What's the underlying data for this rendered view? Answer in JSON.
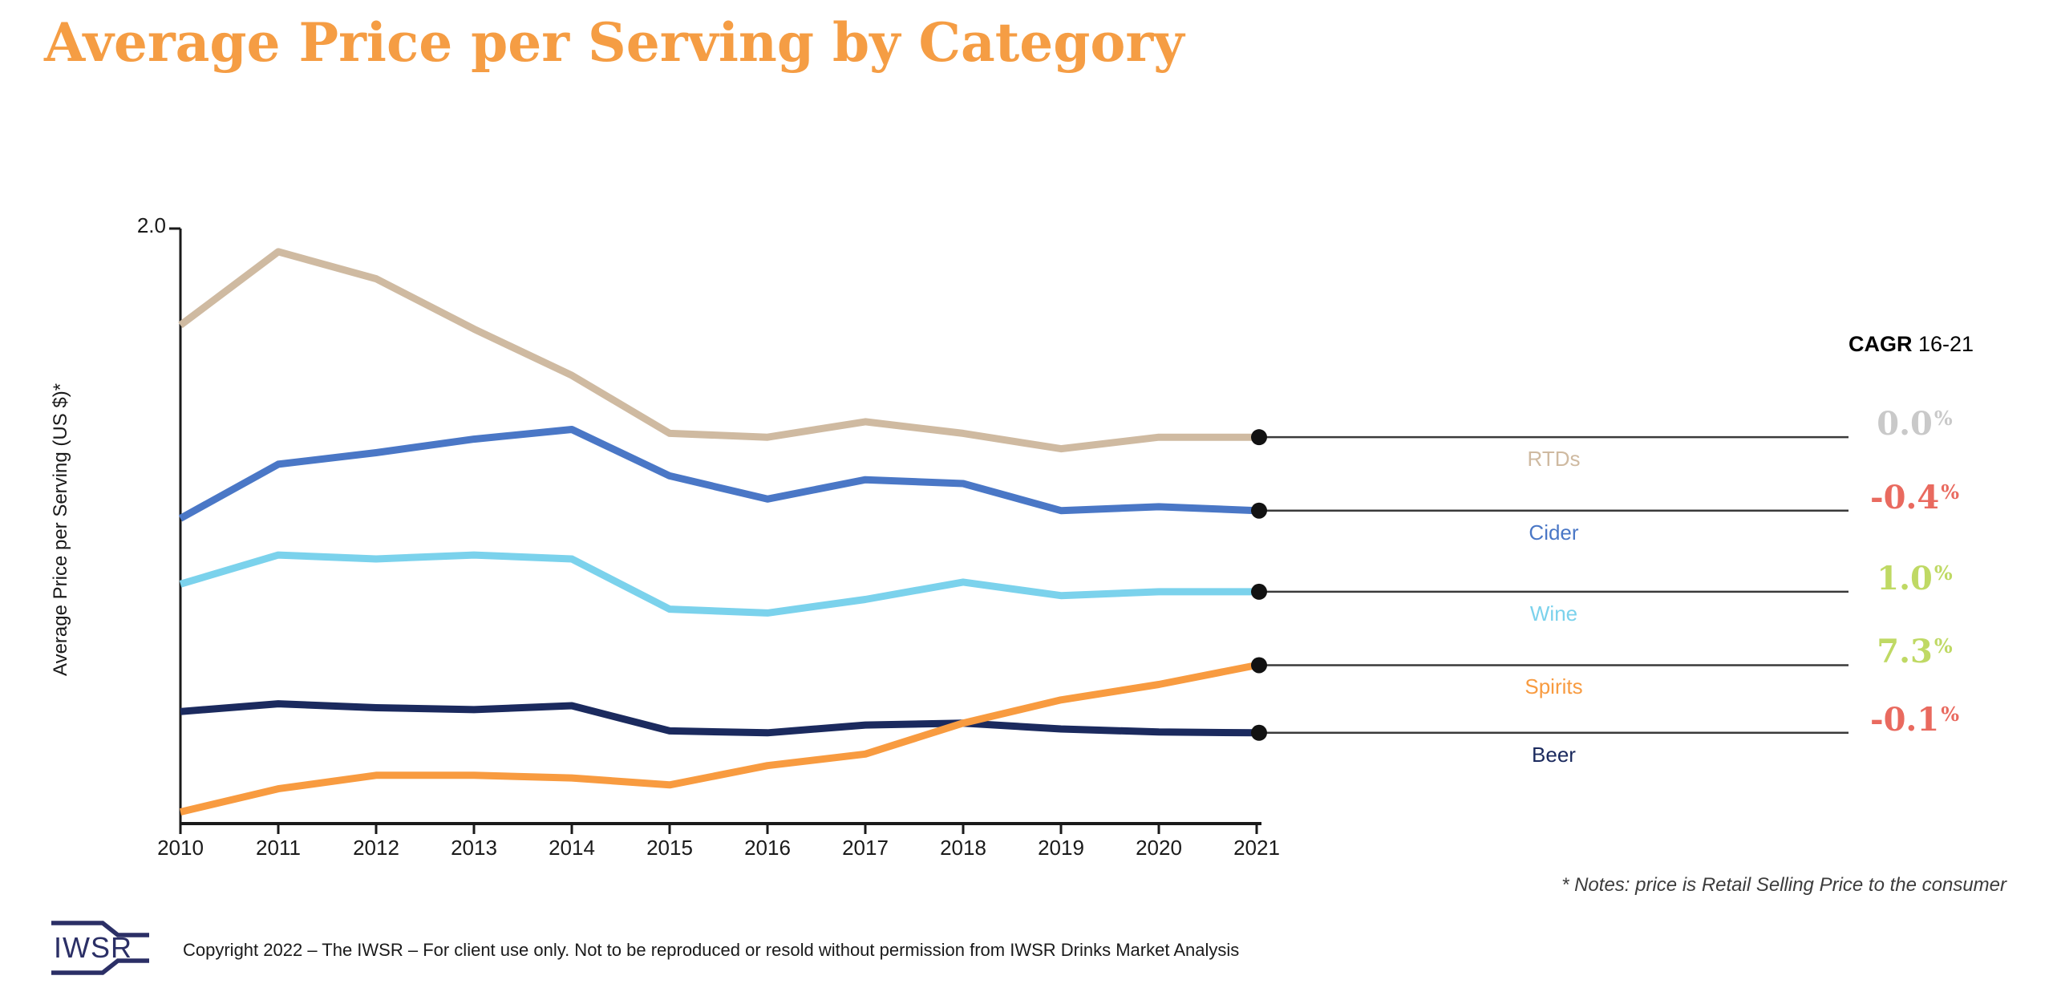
{
  "page": {
    "title": "Average Price per Serving by Category",
    "title_color": "#F59D44"
  },
  "chart_data": {
    "type": "line",
    "title": "Average Price per Serving by Category",
    "ylabel": "Average Price per Serving (US $)*",
    "y_axis_top_label": "2.0",
    "ylim": [
      0.46,
      2.0
    ],
    "grid": false,
    "legend_position": "right",
    "x": [
      2010,
      2011,
      2012,
      2013,
      2014,
      2015,
      2016,
      2017,
      2018,
      2019,
      2020,
      2021
    ],
    "series": [
      {
        "name": "RTDs",
        "color": "#CFBAA1",
        "cagr_label": "0.0",
        "cagr_color": "#C9C9C9",
        "values": [
          1.75,
          1.94,
          1.87,
          1.74,
          1.62,
          1.47,
          1.46,
          1.5,
          1.47,
          1.43,
          1.46,
          1.46
        ]
      },
      {
        "name": "Cider",
        "color": "#4A77C6",
        "cagr_label": "-0.4",
        "cagr_color": "#E96A5F",
        "values": [
          1.25,
          1.39,
          1.42,
          1.455,
          1.48,
          1.36,
          1.3,
          1.35,
          1.34,
          1.27,
          1.28,
          1.27
        ]
      },
      {
        "name": "Wine",
        "color": "#7BD2EC",
        "cagr_label": "1.0",
        "cagr_color": "#BFD964",
        "values": [
          1.08,
          1.155,
          1.145,
          1.155,
          1.145,
          1.015,
          1.005,
          1.04,
          1.085,
          1.05,
          1.06,
          1.06
        ]
      },
      {
        "name": "Beer",
        "color": "#1B2A5E",
        "cagr_label": "-0.1",
        "cagr_color": "#E96A5F",
        "values": [
          0.75,
          0.77,
          0.76,
          0.755,
          0.765,
          0.7,
          0.695,
          0.715,
          0.72,
          0.705,
          0.697,
          0.695
        ]
      },
      {
        "name": "Spirits",
        "color": "#F89B40",
        "cagr_label": "7.3",
        "cagr_color": "#BFD964",
        "values": [
          0.49,
          0.55,
          0.585,
          0.585,
          0.578,
          0.56,
          0.61,
          0.64,
          0.72,
          0.78,
          0.82,
          0.87
        ]
      }
    ]
  },
  "cagr_header": {
    "bold": "CAGR",
    "rest": " 16-21"
  },
  "percent_sign": "%",
  "notes": "* Notes: price is Retail Selling Price to the consumer",
  "footer": {
    "logo_text": "IWSR",
    "copyright": "Copyright 2022 – The IWSR – For client use only. Not to be reproduced or resold without permission from IWSR Drinks Market Analysis"
  }
}
